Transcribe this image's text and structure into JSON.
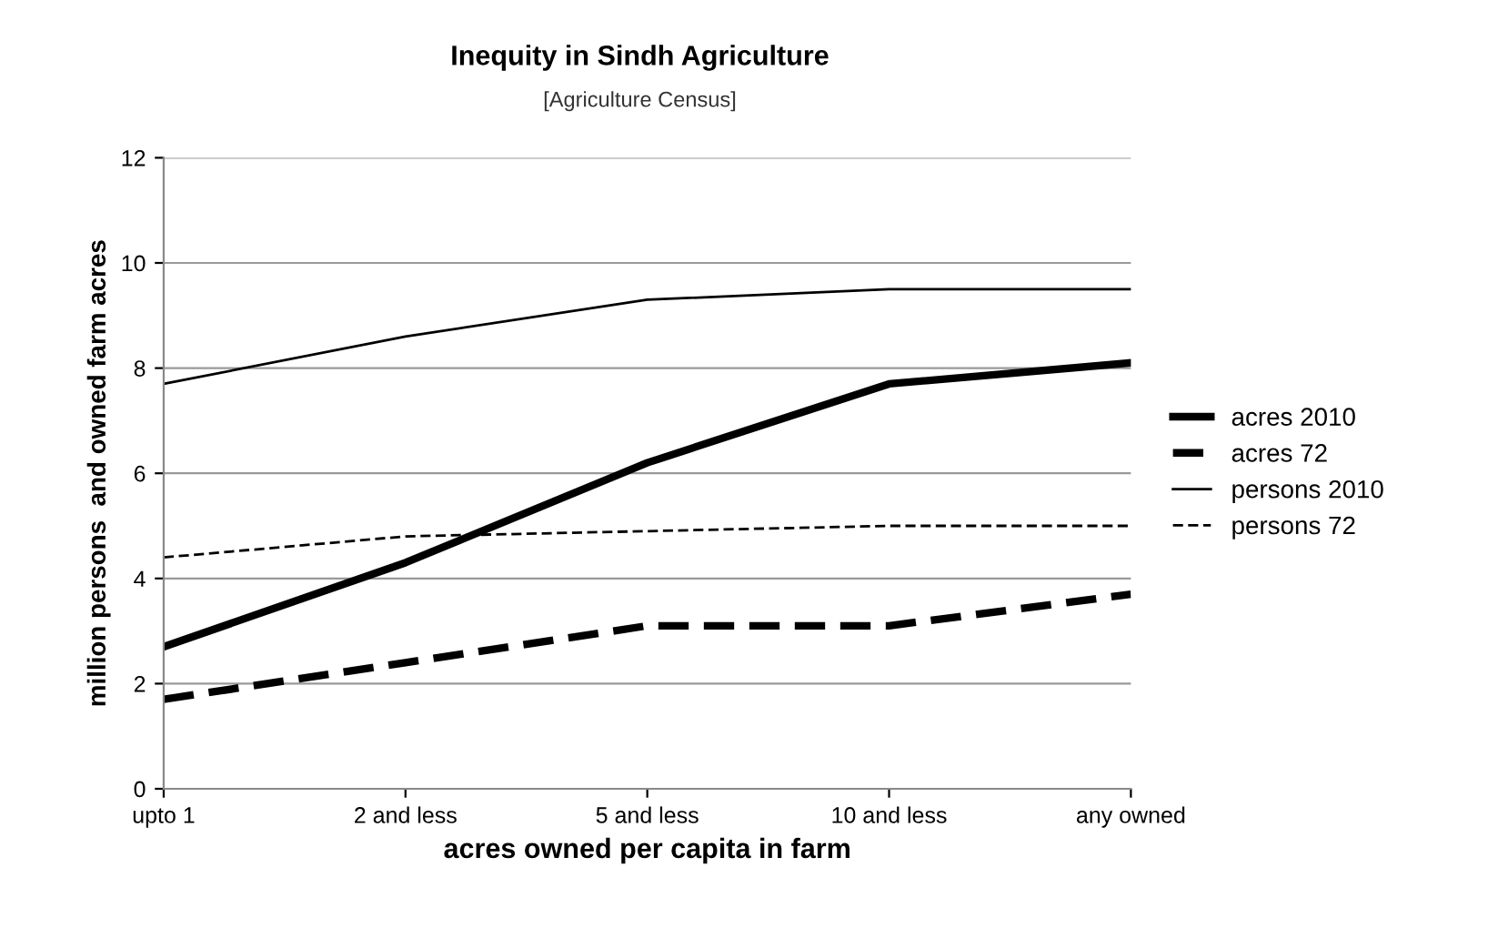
{
  "chart_data": {
    "type": "line",
    "title": "Inequity in Sindh Agriculture",
    "subtitle": "[Agriculture Census]",
    "xlabel": "acres owned per capita in farm",
    "ylabel": "million persons  and owned farm acres",
    "categories": [
      "upto 1",
      "2 and less",
      "5 and less",
      "10 and less",
      "any owned"
    ],
    "series": [
      {
        "name": "acres 2010",
        "color": "#000000",
        "values": [
          2.7,
          4.3,
          6.2,
          7.7,
          8.1
        ],
        "line_style": "solid"
      },
      {
        "name": "acres 72",
        "color": "#000000",
        "values": [
          1.7,
          2.4,
          3.1,
          3.1,
          3.7
        ],
        "line_style": "dashed"
      },
      {
        "name": "persons 2010",
        "color": "#000000",
        "values": [
          7.7,
          8.6,
          9.3,
          9.5,
          9.5
        ],
        "line_style": "solid"
      },
      {
        "name": "persons 72",
        "color": "#000000",
        "values": [
          4.4,
          4.8,
          4.9,
          5.0,
          5.0
        ],
        "line_style": "dashed"
      }
    ],
    "ylim": [
      0,
      12
    ],
    "yticks": [
      0,
      2,
      4,
      6,
      8,
      10,
      12
    ],
    "grid": "y",
    "legend": "right",
    "marker": "none"
  }
}
